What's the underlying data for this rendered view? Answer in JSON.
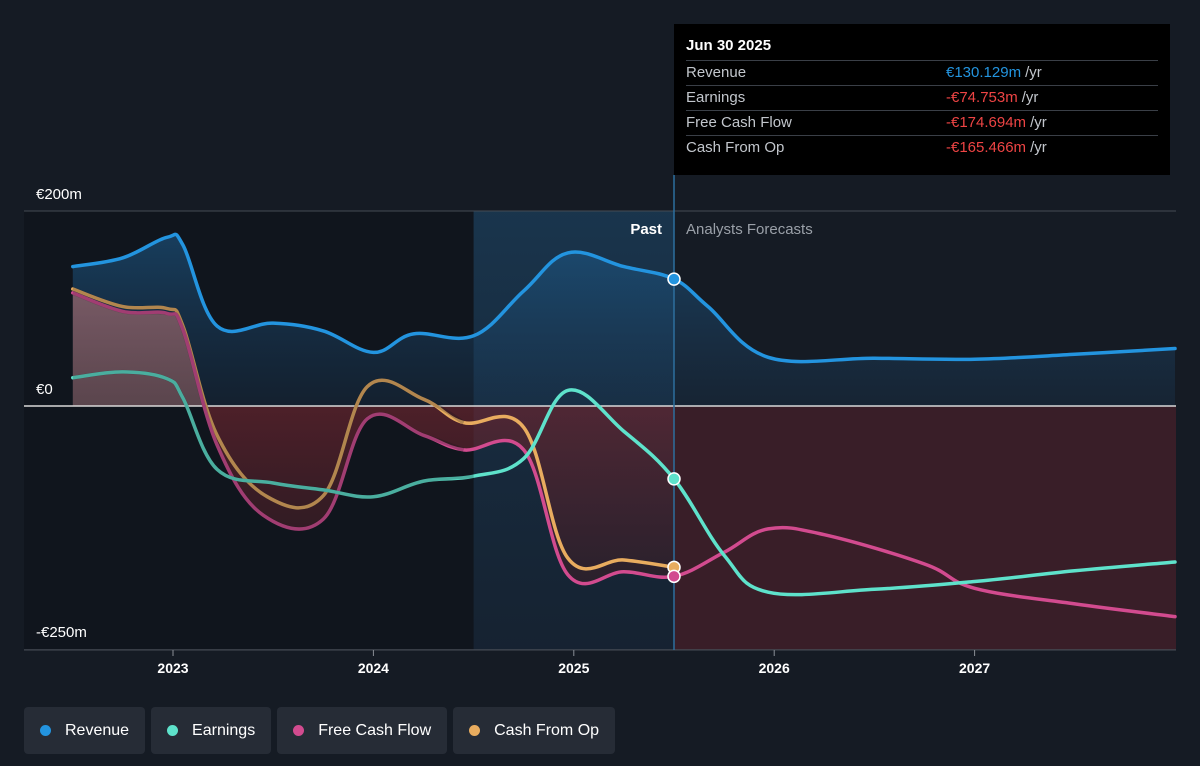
{
  "chart_data": {
    "type": "line",
    "currency_unit": "m",
    "y_ticks": [
      {
        "value": 200,
        "label": "€200m"
      },
      {
        "value": 0,
        "label": "€0"
      },
      {
        "value": -250,
        "label": "-€250m"
      }
    ],
    "ylim": [
      -250,
      200
    ],
    "x_ticks": [
      {
        "value": 2023,
        "label": "2023"
      },
      {
        "value": 2024,
        "label": "2024"
      },
      {
        "value": 2025,
        "label": "2025"
      },
      {
        "value": 2026,
        "label": "2026"
      },
      {
        "value": 2027,
        "label": "2027"
      }
    ],
    "xlim": [
      2022.5,
      2028.0
    ],
    "divider_x": 2025.5,
    "highlight_start_x": 2024.5,
    "past_label": "Past",
    "forecast_label": "Analysts Forecasts",
    "series": [
      {
        "name": "Revenue",
        "color": "#2394df",
        "points": [
          [
            2022.5,
            143
          ],
          [
            2022.75,
            152
          ],
          [
            2022.97,
            173
          ],
          [
            2023.05,
            165
          ],
          [
            2023.22,
            82
          ],
          [
            2023.5,
            85
          ],
          [
            2023.75,
            77
          ],
          [
            2024.0,
            55
          ],
          [
            2024.2,
            74
          ],
          [
            2024.5,
            72
          ],
          [
            2024.75,
            118
          ],
          [
            2024.97,
            157
          ],
          [
            2025.25,
            143
          ],
          [
            2025.5,
            130.129
          ],
          [
            2025.67,
            102
          ],
          [
            2025.97,
            50
          ],
          [
            2026.5,
            49
          ],
          [
            2027.0,
            48
          ],
          [
            2027.5,
            53
          ],
          [
            2028.0,
            59
          ]
        ]
      },
      {
        "name": "Earnings",
        "color": "#5ee2cb",
        "points": [
          [
            2022.5,
            29
          ],
          [
            2022.75,
            35
          ],
          [
            2022.97,
            28
          ],
          [
            2023.05,
            8
          ],
          [
            2023.22,
            -65
          ],
          [
            2023.5,
            -79
          ],
          [
            2023.75,
            -86
          ],
          [
            2024.0,
            -93
          ],
          [
            2024.25,
            -77
          ],
          [
            2024.5,
            -72
          ],
          [
            2024.75,
            -54
          ],
          [
            2024.97,
            16
          ],
          [
            2025.25,
            -26
          ],
          [
            2025.5,
            -74.753
          ],
          [
            2025.75,
            -153
          ],
          [
            2025.97,
            -191
          ],
          [
            2026.5,
            -188
          ],
          [
            2027.0,
            -180
          ],
          [
            2027.5,
            -169
          ],
          [
            2028.0,
            -160
          ]
        ]
      },
      {
        "name": "Free Cash Flow",
        "color": "#d24b8f",
        "points": [
          [
            2022.5,
            116
          ],
          [
            2022.75,
            97
          ],
          [
            2022.97,
            95
          ],
          [
            2023.05,
            78
          ],
          [
            2023.22,
            -40
          ],
          [
            2023.45,
            -112
          ],
          [
            2023.75,
            -116
          ],
          [
            2023.97,
            -13
          ],
          [
            2024.25,
            -30
          ],
          [
            2024.45,
            -45
          ],
          [
            2024.75,
            -45
          ],
          [
            2024.97,
            -173
          ],
          [
            2025.25,
            -170
          ],
          [
            2025.5,
            -174.694
          ],
          [
            2025.75,
            -150
          ],
          [
            2025.97,
            -126
          ],
          [
            2026.25,
            -132
          ],
          [
            2026.75,
            -162
          ],
          [
            2027.0,
            -187
          ],
          [
            2027.5,
            -203
          ],
          [
            2028.0,
            -216
          ]
        ]
      },
      {
        "name": "Cash From Op",
        "color": "#e8ac5f",
        "points": [
          [
            2022.5,
            120
          ],
          [
            2022.75,
            102
          ],
          [
            2022.97,
            100
          ],
          [
            2023.05,
            82
          ],
          [
            2023.22,
            -30
          ],
          [
            2023.47,
            -93
          ],
          [
            2023.75,
            -92
          ],
          [
            2023.97,
            20
          ],
          [
            2024.25,
            7
          ],
          [
            2024.45,
            -17
          ],
          [
            2024.75,
            -22
          ],
          [
            2024.97,
            -156
          ],
          [
            2025.25,
            -158
          ],
          [
            2025.5,
            -165.466
          ]
        ]
      }
    ]
  },
  "tooltip": {
    "date": "Jun 30 2025",
    "rows": [
      {
        "label": "Revenue",
        "value": "€130.129m",
        "unit": "/yr",
        "color": "#2394df"
      },
      {
        "label": "Earnings",
        "value": "-€74.753m",
        "unit": "/yr",
        "color": "#ee4444"
      },
      {
        "label": "Free Cash Flow",
        "value": "-€174.694m",
        "unit": "/yr",
        "color": "#ee4444"
      },
      {
        "label": "Cash From Op",
        "value": "-€165.466m",
        "unit": "/yr",
        "color": "#ee4444"
      }
    ]
  },
  "legend": [
    {
      "label": "Revenue",
      "color": "#2394df"
    },
    {
      "label": "Earnings",
      "color": "#5ee2cb"
    },
    {
      "label": "Free Cash Flow",
      "color": "#d24b8f"
    },
    {
      "label": "Cash From Op",
      "color": "#e8ac5f"
    }
  ]
}
